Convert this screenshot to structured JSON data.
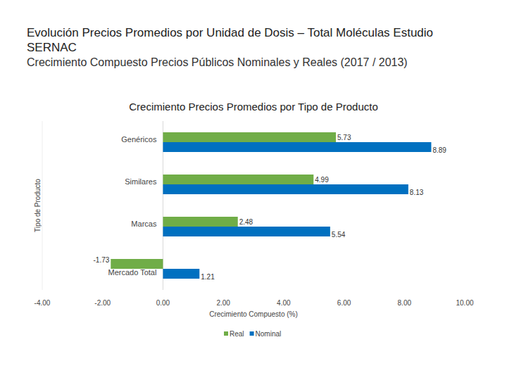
{
  "chart_data": {
    "type": "bar",
    "orientation": "horizontal",
    "title": "Evolución Precios Promedios por Unidad de Dosis – Total Moléculas Estudio SERNAC",
    "subtitle": "Crecimiento Compuesto Precios Públicos Nominales y Reales (2017 / 2013)",
    "chart_title": "Crecimiento Precios Promedios por Tipo de Producto",
    "x_label": "Crecimiento Compuesto (%)",
    "y_label": "Tipo de Producto",
    "categories": [
      "Genéricos",
      "Similares",
      "Marcas",
      "Mercado Total"
    ],
    "series": [
      {
        "name": "Real",
        "color": "#70ad47",
        "values": [
          5.73,
          4.99,
          2.48,
          -1.73
        ]
      },
      {
        "name": "Nominal",
        "color": "#0070c0",
        "values": [
          8.89,
          8.13,
          5.54,
          1.21
        ]
      }
    ],
    "xlim": [
      -4,
      10
    ],
    "xticks": [
      {
        "value": -4,
        "label": "-4.00"
      },
      {
        "value": -2,
        "label": "-2.00"
      },
      {
        "value": 0,
        "label": "0.00"
      },
      {
        "value": 2,
        "label": "2.00"
      },
      {
        "value": 4,
        "label": "4.00"
      },
      {
        "value": 6,
        "label": "6.00"
      },
      {
        "value": 8,
        "label": "8.00"
      },
      {
        "value": 10,
        "label": "10.00"
      }
    ],
    "grid": false,
    "data_labels": true,
    "legend": "bottom"
  }
}
